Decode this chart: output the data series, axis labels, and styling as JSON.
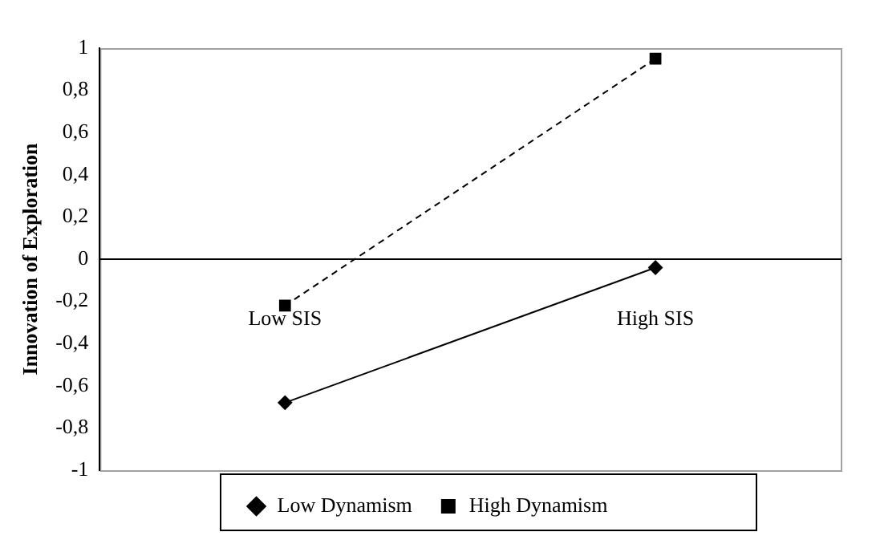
{
  "chart_data": {
    "type": "line",
    "ylabel": "Innovation of Exploration",
    "categories": [
      "Low SIS",
      "High SIS"
    ],
    "series": [
      {
        "name": "Low Dynamism",
        "color": "#000000",
        "values": [
          -0.68,
          -0.04
        ],
        "marker": "diamond",
        "line_style": "solid"
      },
      {
        "name": "High Dynamism",
        "color": "#000000",
        "values": [
          -0.22,
          0.95
        ],
        "marker": "square",
        "line_style": "dashed"
      }
    ],
    "ylim": [
      -1,
      1
    ],
    "yticks": [
      {
        "value": -1,
        "label": "-1"
      },
      {
        "value": -0.8,
        "label": "-0,8"
      },
      {
        "value": -0.6,
        "label": "-0,6"
      },
      {
        "value": -0.4,
        "label": "-0,4"
      },
      {
        "value": -0.2,
        "label": "-0,2"
      },
      {
        "value": 0,
        "label": "0"
      },
      {
        "value": 0.2,
        "label": "0,2"
      },
      {
        "value": 0.4,
        "label": "0,4"
      },
      {
        "value": 0.6,
        "label": "0,6"
      },
      {
        "value": 0.8,
        "label": "0,8"
      },
      {
        "value": 1,
        "label": "1"
      }
    ],
    "grid": false,
    "legend": "bottom"
  }
}
